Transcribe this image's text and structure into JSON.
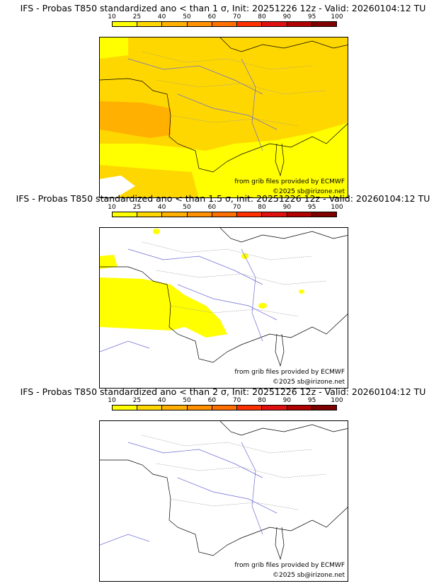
{
  "colorbar": {
    "ticks": [
      "10",
      "25",
      "40",
      "50",
      "60",
      "70",
      "80",
      "90",
      "95",
      "100"
    ],
    "colors": [
      "#ffff00",
      "#ffd700",
      "#ffb000",
      "#ff9000",
      "#ff7000",
      "#ff3000",
      "#e01010",
      "#b00000",
      "#800000"
    ]
  },
  "panels": [
    {
      "title": "IFS - Probas T850  standardized ano < than 1 σ, Init: 20251226 12z - Valid: 20260104:12 TU",
      "source_credit": "from grib files provided by ECMWF",
      "copyright": "©2025 sb@irizone.net",
      "probability_fill": "high"
    },
    {
      "title": "IFS - Probas T850  standardized ano < than 1.5 σ, Init: 20251226 12z - Valid: 20260104:12 TU",
      "source_credit": "from grib files provided by ECMWF",
      "copyright": "©2025 sb@irizone.net",
      "probability_fill": "medium"
    },
    {
      "title": "IFS - Probas T850  standardized ano < than 2 σ, Init: 20251226 12z - Valid: 20260104:12 TU",
      "source_credit": "from grib files provided by ECMWF",
      "copyright": "©2025 sb@irizone.net",
      "probability_fill": "none"
    }
  ]
}
